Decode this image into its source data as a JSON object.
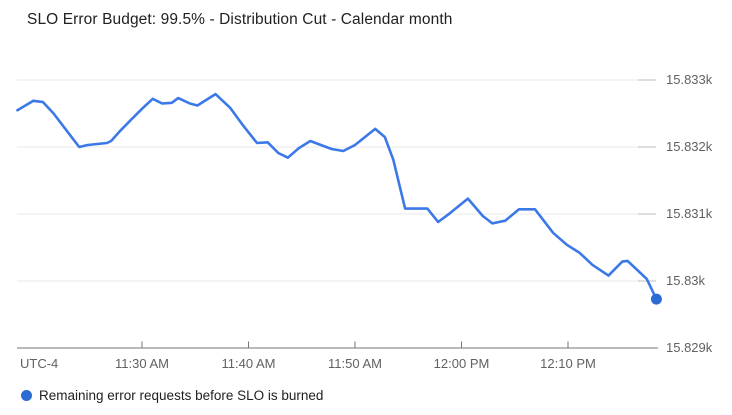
{
  "header": {
    "title": "SLO Error Budget: 99.5% - Distribution Cut - Calendar month"
  },
  "legend": {
    "label": "Remaining error requests before SLO is burned"
  },
  "colors": {
    "line": "#3B78E8",
    "dot": "#2C6AD4",
    "grid": "#E8E8E8",
    "y_tick": "#BDBDBD",
    "axis": "#757575",
    "axis_label": "#616161",
    "title_text": "#212121",
    "legend_text": "#212121",
    "background": "#FFFFFF"
  },
  "chart_data": {
    "type": "line",
    "title": "SLO Error Budget: 99.5% - Distribution Cut - Calendar month",
    "xlabel": "",
    "ylabel": "",
    "x_unit": "minutes after 11:00 AM (UTC-4)",
    "x_corner_label": "UTC-4",
    "x_ticks": [
      {
        "minute": 30,
        "label": "11:30 AM"
      },
      {
        "minute": 40,
        "label": "11:40 AM"
      },
      {
        "minute": 50,
        "label": "11:50 AM"
      },
      {
        "minute": 60,
        "label": "12:00 PM"
      },
      {
        "minute": 70,
        "label": "12:10 PM"
      }
    ],
    "y_ticks": [
      {
        "value": 15833,
        "label": "15.833k"
      },
      {
        "value": 15832,
        "label": "15.832k"
      },
      {
        "value": 15831,
        "label": "15.831k"
      },
      {
        "value": 15830,
        "label": "15.83k"
      },
      {
        "value": 15829,
        "label": "15.829k"
      }
    ],
    "x_range_minutes": [
      18.3,
      78.3
    ],
    "y_range": [
      15829,
      15833.1
    ],
    "grid": "horizontal-only",
    "legend_position": "bottom-left",
    "series": [
      {
        "name": "Remaining error requests before SLO is burned",
        "color": "#3B78E8",
        "end_marker": true,
        "points": [
          [
            18.3,
            15832.55
          ],
          [
            19.8,
            15832.69
          ],
          [
            20.7,
            15832.67
          ],
          [
            21.7,
            15832.5
          ],
          [
            22.9,
            15832.25
          ],
          [
            24.1,
            15832.0
          ],
          [
            24.9,
            15832.03
          ],
          [
            26.7,
            15832.06
          ],
          [
            27.1,
            15832.09
          ],
          [
            28.0,
            15832.25
          ],
          [
            29.0,
            15832.41
          ],
          [
            30.0,
            15832.57
          ],
          [
            31.0,
            15832.72
          ],
          [
            31.9,
            15832.65
          ],
          [
            32.8,
            15832.66
          ],
          [
            33.4,
            15832.73
          ],
          [
            34.5,
            15832.65
          ],
          [
            35.2,
            15832.62
          ],
          [
            36.9,
            15832.79
          ],
          [
            38.3,
            15832.58
          ],
          [
            39.5,
            15832.32
          ],
          [
            40.8,
            15832.06
          ],
          [
            41.8,
            15832.07
          ],
          [
            42.8,
            15831.91
          ],
          [
            43.7,
            15831.84
          ],
          [
            44.7,
            15831.98
          ],
          [
            45.8,
            15832.09
          ],
          [
            46.8,
            15832.03
          ],
          [
            47.8,
            15831.97
          ],
          [
            48.9,
            15831.94
          ],
          [
            50.0,
            15832.03
          ],
          [
            51.9,
            15832.27
          ],
          [
            52.8,
            15832.15
          ],
          [
            53.6,
            15831.81
          ],
          [
            54.7,
            15831.08
          ],
          [
            56.8,
            15831.08
          ],
          [
            57.8,
            15830.88
          ],
          [
            58.9,
            15831.01
          ],
          [
            60.6,
            15831.23
          ],
          [
            62.0,
            15830.97
          ],
          [
            62.9,
            15830.86
          ],
          [
            64.1,
            15830.9
          ],
          [
            65.4,
            15831.07
          ],
          [
            66.9,
            15831.07
          ],
          [
            68.6,
            15830.72
          ],
          [
            69.9,
            15830.54
          ],
          [
            71.1,
            15830.42
          ],
          [
            72.3,
            15830.24
          ],
          [
            73.8,
            15830.08
          ],
          [
            75.1,
            15830.29
          ],
          [
            75.6,
            15830.3
          ],
          [
            77.4,
            15830.03
          ],
          [
            78.3,
            15829.73
          ]
        ]
      }
    ]
  }
}
